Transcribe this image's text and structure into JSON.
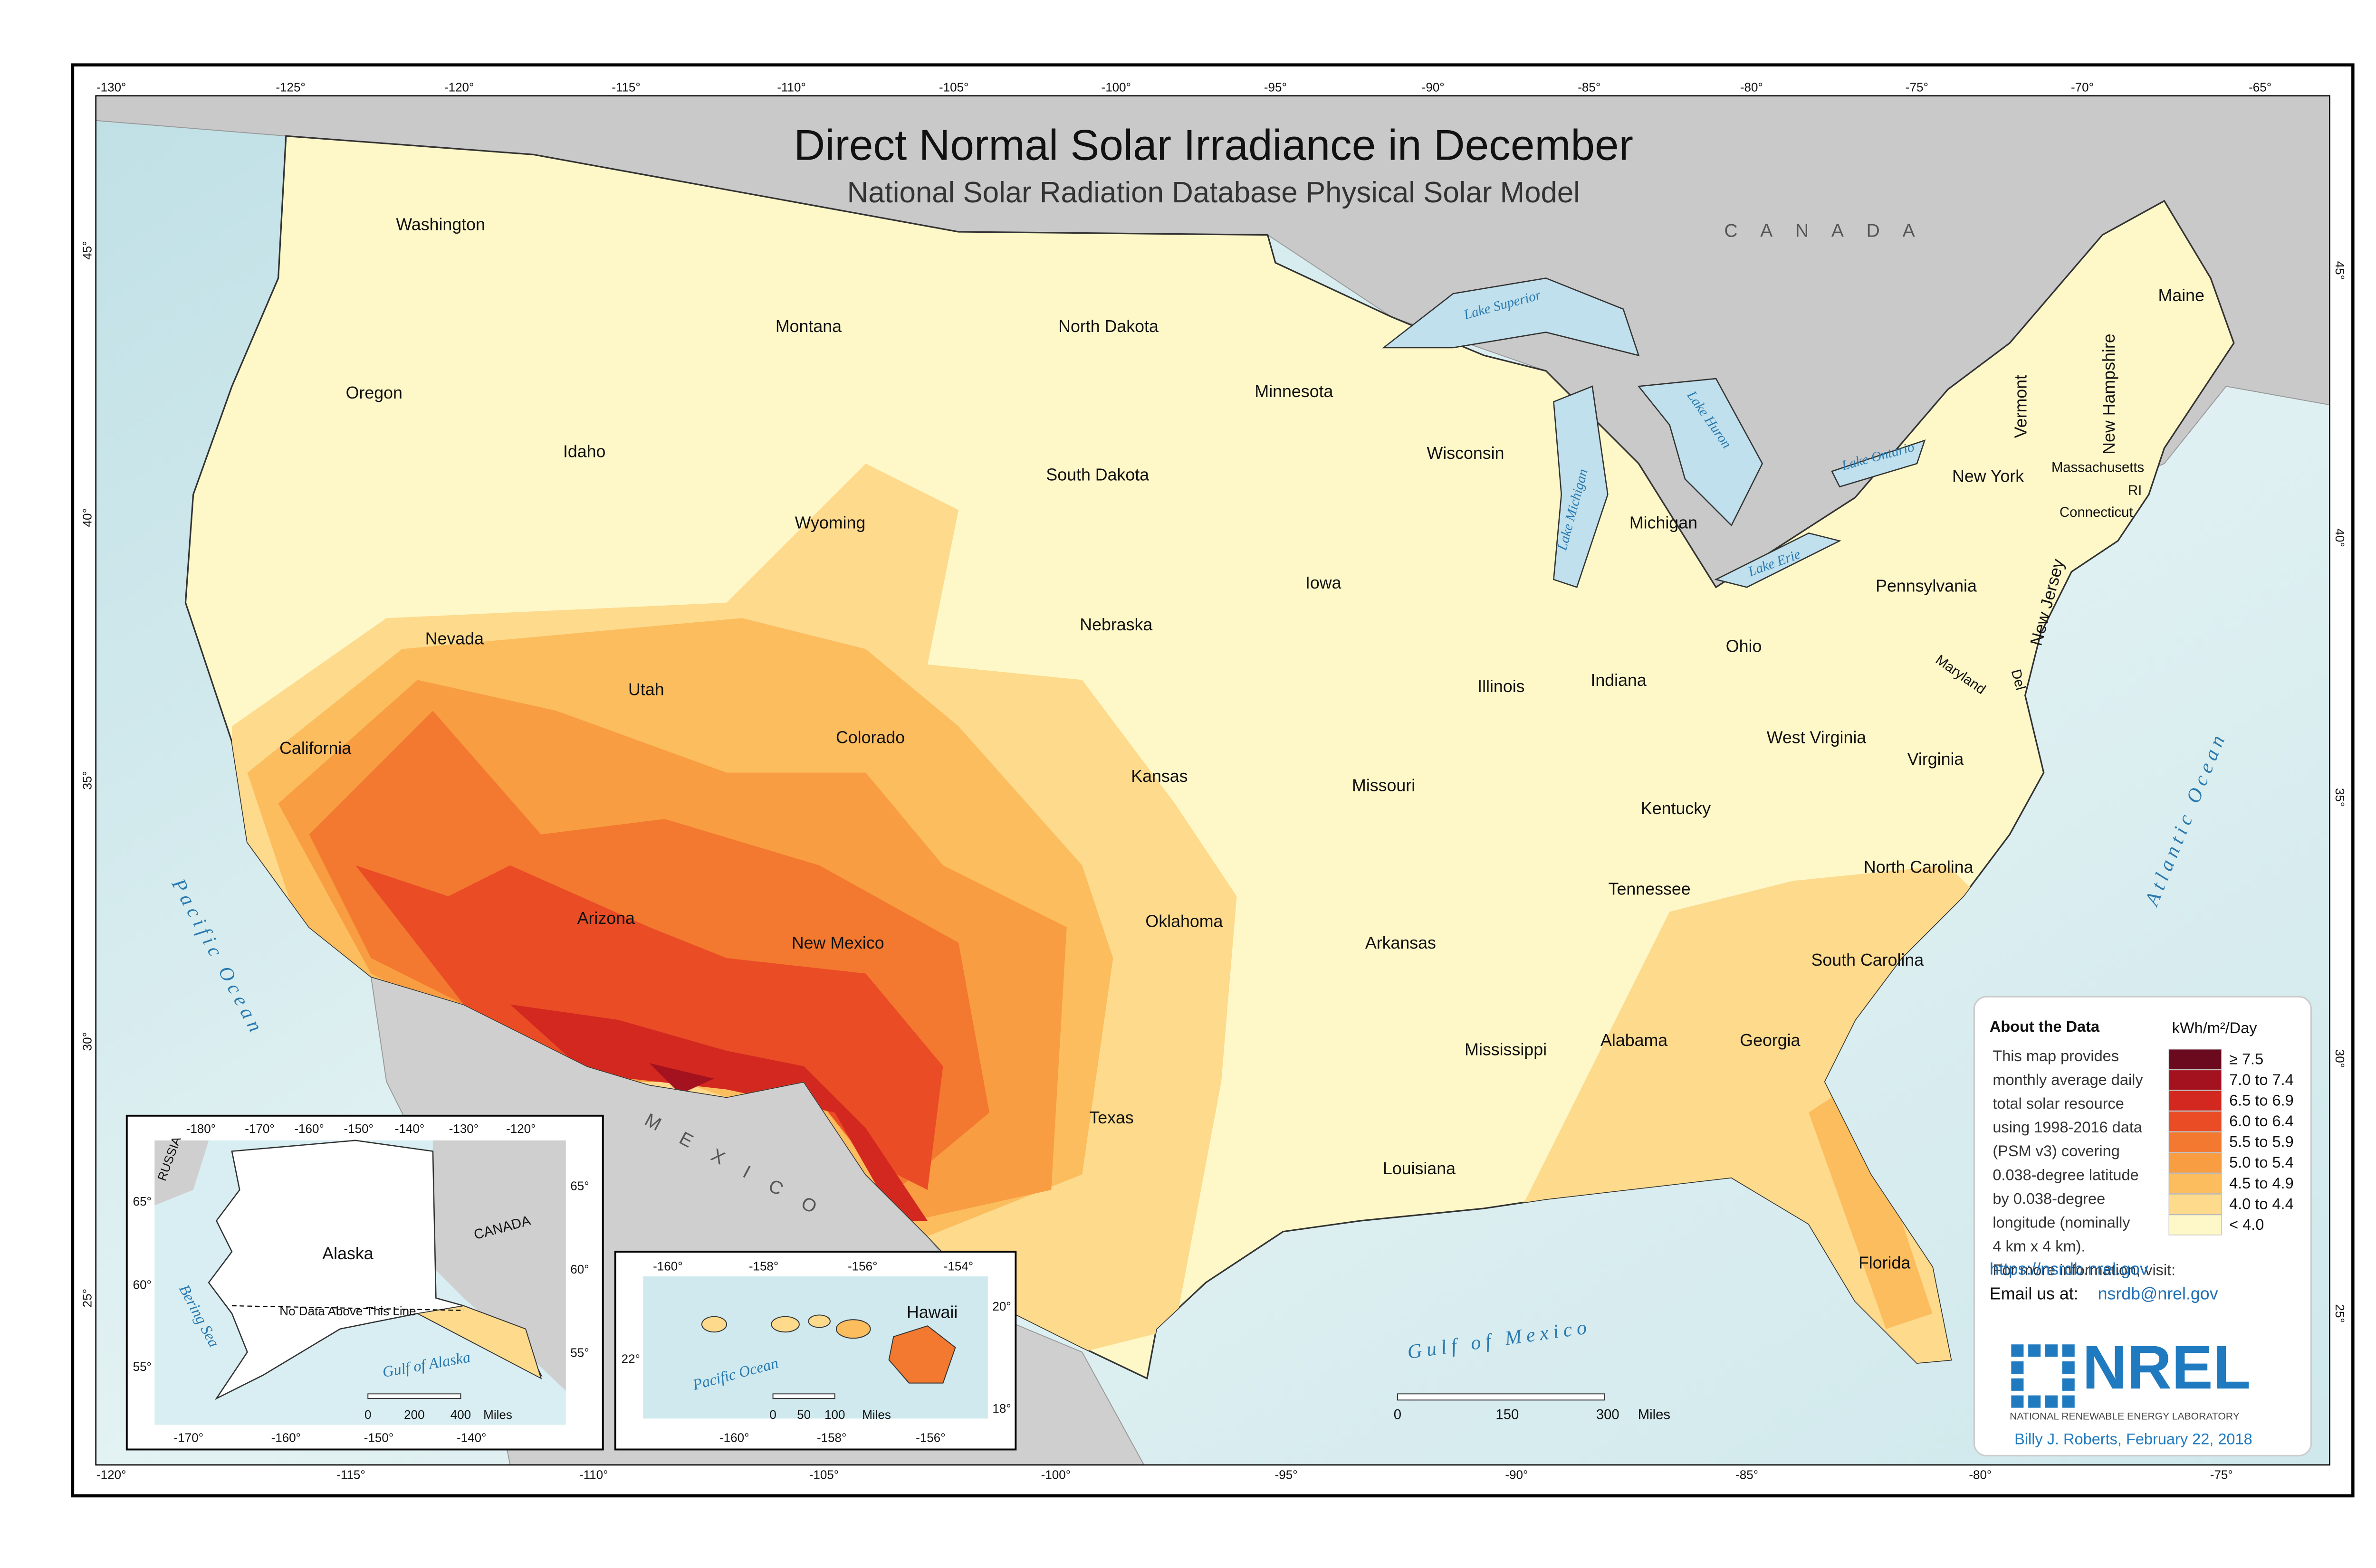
{
  "title": "Direct Normal Solar Irradiance in December",
  "subtitle": "National Solar Radiation Database Physical Solar Model",
  "graticule": {
    "top": [
      "-130°",
      "-125°",
      "-120°",
      "-115°",
      "-110°",
      "-105°",
      "-100°",
      "-95°",
      "-90°",
      "-85°",
      "-80°",
      "-75°",
      "-70°",
      "-65°"
    ],
    "bottom": [
      "-120°",
      "-115°",
      "-110°",
      "-105°",
      "-100°",
      "-95°",
      "-90°",
      "-85°",
      "-80°",
      "-75°"
    ],
    "left": [
      "45°",
      "40°",
      "35°",
      "30°",
      "25°"
    ],
    "right": [
      "45°",
      "40°",
      "35°",
      "30°",
      "25°"
    ]
  },
  "regions": [
    "C A N A D A",
    "M E X I C O"
  ],
  "water": [
    "Pacific Ocean",
    "Atlantic Ocean",
    "Gulf of Mexico",
    "Lake Superior",
    "Lake Michigan",
    "Lake Huron",
    "Lake Erie",
    "Lake Ontario"
  ],
  "states": [
    "Washington",
    "Oregon",
    "California",
    "Nevada",
    "Idaho",
    "Montana",
    "Wyoming",
    "Utah",
    "Colorado",
    "Arizona",
    "New Mexico",
    "North Dakota",
    "South Dakota",
    "Nebraska",
    "Kansas",
    "Oklahoma",
    "Texas",
    "Minnesota",
    "Iowa",
    "Missouri",
    "Arkansas",
    "Louisiana",
    "Wisconsin",
    "Illinois",
    "Mississippi",
    "Michigan",
    "Indiana",
    "Ohio",
    "Kentucky",
    "Tennessee",
    "Alabama",
    "Georgia",
    "Florida",
    "South Carolina",
    "North Carolina",
    "Virginia",
    "West Virginia",
    "Pennsylvania",
    "New York",
    "Vermont",
    "New Hampshire",
    "Maine",
    "Massachusetts",
    "Connecticut",
    "RI",
    "New Jersey",
    "Del",
    "Maryland"
  ],
  "about": {
    "heading": "About the Data",
    "lines": [
      "This map provides",
      "monthly average daily",
      "total solar resource",
      "using 1998-2016 data",
      "(PSM v3) covering",
      "0.038-degree latitude",
      "by 0.038-degree",
      "longitude (nominally",
      "4 km x 4 km).",
      "For more information, visit:"
    ],
    "link": "https://nsrdb.nrel.gov",
    "email_prefix": "Email us at:",
    "email": "nsrdb@nrel.gov"
  },
  "legend": {
    "title": "kWh/m²/Day",
    "items": [
      {
        "label": "≥ 7.5",
        "color": "#6b0a1e"
      },
      {
        "label": "7.0 to 7.4",
        "color": "#a5121f"
      },
      {
        "label": "6.5 to 6.9",
        "color": "#d3281f"
      },
      {
        "label": "6.0 to 6.4",
        "color": "#ea4c26"
      },
      {
        "label": "5.5 to 5.9",
        "color": "#f2792f"
      },
      {
        "label": "5.0 to 5.4",
        "color": "#f89d42"
      },
      {
        "label": "4.5 to 4.9",
        "color": "#fbbd5e"
      },
      {
        "label": "4.0 to 4.4",
        "color": "#fdda8c"
      },
      {
        "label": "< 4.0",
        "color": "#fef8c8"
      }
    ]
  },
  "logo": {
    "name": "NREL",
    "full": "NATIONAL RENEWABLE ENERGY LABORATORY"
  },
  "credit": "Billy J. Roberts,  February 22, 2018",
  "scale": [
    "0",
    "150",
    "300",
    "Miles"
  ],
  "alaska": {
    "top": [
      "-180°",
      "-170°",
      "-160°",
      "-150°",
      "-140°",
      "-130°",
      "-120°"
    ],
    "bottom": [
      "-170°",
      "-160°",
      "-150°",
      "-140°"
    ],
    "left": [
      "65°",
      "60°",
      "55°"
    ],
    "right": [
      "65°",
      "60°",
      "55°"
    ],
    "labels": [
      "RUSSIA",
      "CANADA",
      "Alaska",
      "Bering Sea",
      "Gulf of Alaska",
      "No Data Above This Line"
    ],
    "scale": [
      "0",
      "200",
      "400",
      "Miles"
    ]
  },
  "hawaii": {
    "top": [
      "-160°",
      "-158°",
      "-156°",
      "-154°"
    ],
    "bottom": [
      "-160°",
      "-158°",
      "-156°"
    ],
    "left": [
      "22°"
    ],
    "right": [
      "20°",
      "18°"
    ],
    "labels": [
      "Hawaii",
      "Pacific Ocean"
    ],
    "scale": [
      "0",
      "50",
      "100",
      "Miles"
    ]
  }
}
